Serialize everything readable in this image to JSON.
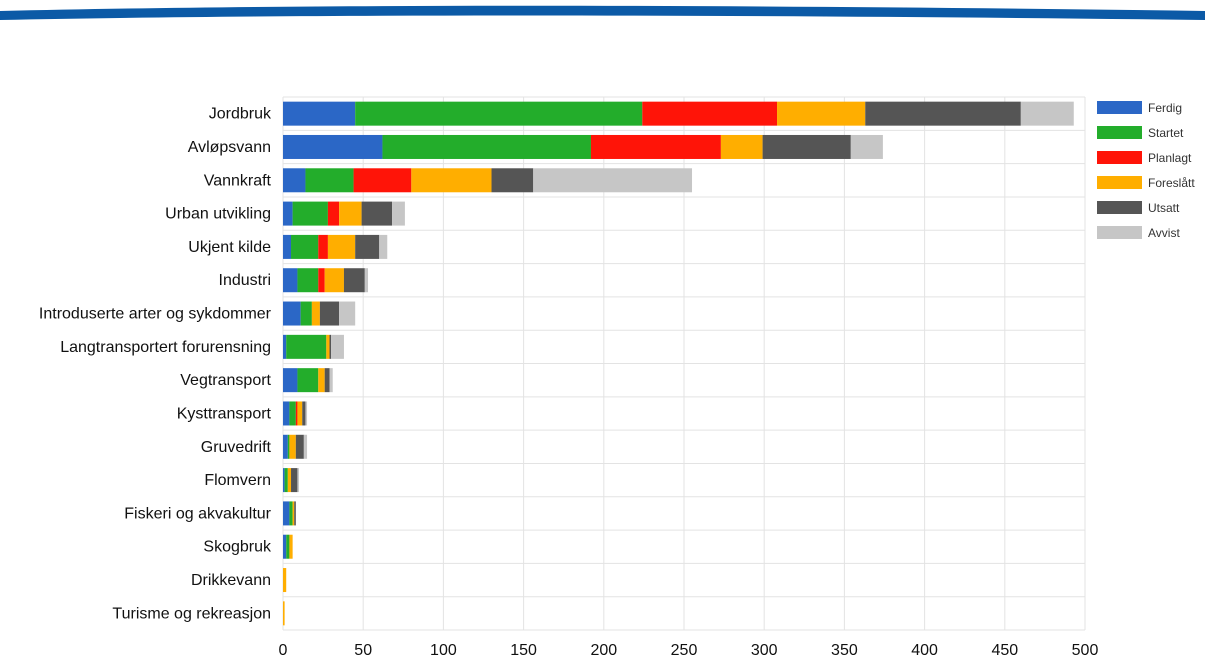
{
  "colors": {
    "Ferdig": "#2b67c6",
    "Startet": "#23ad2b",
    "Planlagt": "#ff1408",
    "Foreslått": "#ffae00",
    "Utsatt": "#555555",
    "Avvist": "#c6c6c6",
    "banner": "#0c5aa6",
    "grid": "#e3e3e3"
  },
  "chart_data": {
    "type": "bar",
    "orientation": "horizontal",
    "stacked": true,
    "categories": [
      "Jordbruk",
      "Avløpsvann",
      "Vannkraft",
      "Urban utvikling",
      "Ukjent kilde",
      "Industri",
      "Introduserte arter og sykdommer",
      "Langtransportert forurensning",
      "Vegtransport",
      "Kysttransport",
      "Gruvedrift",
      "Flomvern",
      "Fiskeri og akvakultur",
      "Skogbruk",
      "Drikkevann",
      "Turisme og rekreasjon"
    ],
    "series": [
      {
        "name": "Ferdig",
        "values": [
          45,
          62,
          14,
          6,
          5,
          9,
          11,
          2,
          9,
          4,
          3,
          1,
          4,
          2,
          0,
          0
        ]
      },
      {
        "name": "Startet",
        "values": [
          179,
          130,
          30,
          22,
          17,
          13,
          7,
          25,
          13,
          4,
          1,
          2,
          2,
          2,
          0,
          0
        ]
      },
      {
        "name": "Planlagt",
        "values": [
          84,
          81,
          36,
          7,
          6,
          4,
          0,
          0,
          0,
          1,
          0,
          0,
          0,
          0,
          0,
          0
        ]
      },
      {
        "name": "Foreslått",
        "values": [
          55,
          26,
          50,
          14,
          17,
          12,
          5,
          2,
          4,
          3,
          4,
          2,
          1,
          2,
          2,
          1
        ]
      },
      {
        "name": "Utsatt",
        "values": [
          97,
          55,
          26,
          19,
          15,
          13,
          12,
          1,
          3,
          2,
          5,
          4,
          1,
          0,
          0,
          0
        ]
      },
      {
        "name": "Avvist",
        "values": [
          33,
          20,
          99,
          8,
          5,
          2,
          10,
          8,
          2,
          1,
          2,
          1,
          0,
          0,
          0,
          0
        ]
      }
    ],
    "xlim": [
      0,
      500
    ],
    "xticks": [
      "0",
      "50",
      "100",
      "150",
      "200",
      "250",
      "300",
      "350",
      "400",
      "450",
      "500"
    ],
    "legend": {
      "position": "right",
      "entries": [
        "Ferdig",
        "Startet",
        "Planlagt",
        "Foreslått",
        "Utsatt",
        "Avvist"
      ]
    },
    "grid": true,
    "title": "",
    "xlabel": "",
    "ylabel": ""
  }
}
